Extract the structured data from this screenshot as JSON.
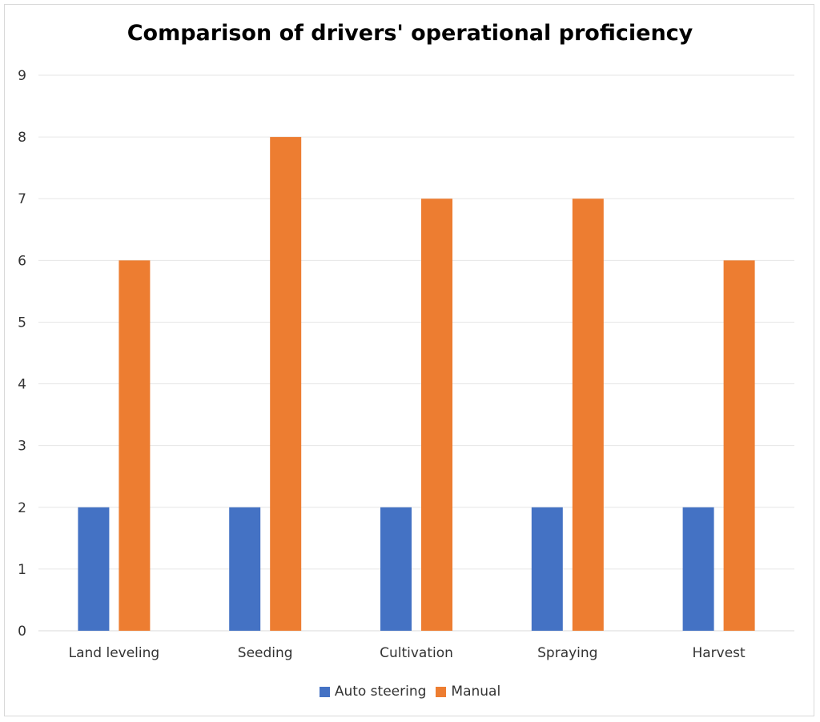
{
  "chart_data": {
    "type": "bar",
    "title": "Comparison of drivers' operational proficiency",
    "categories": [
      "Land leveling",
      "Seeding",
      "Cultivation",
      "Spraying",
      "Harvest"
    ],
    "series": [
      {
        "name": "Auto steering",
        "values": [
          2,
          2,
          2,
          2,
          2
        ],
        "color": "#4472C4"
      },
      {
        "name": "Manual",
        "values": [
          6,
          8,
          7,
          7,
          6
        ],
        "color": "#ED7D31"
      }
    ],
    "xlabel": "",
    "ylabel": "",
    "ylim": [
      0,
      9
    ],
    "yticks": [
      "0",
      "1",
      "2",
      "3",
      "4",
      "5",
      "6",
      "7",
      "8",
      "9"
    ],
    "grid": true,
    "legend_position": "bottom"
  }
}
